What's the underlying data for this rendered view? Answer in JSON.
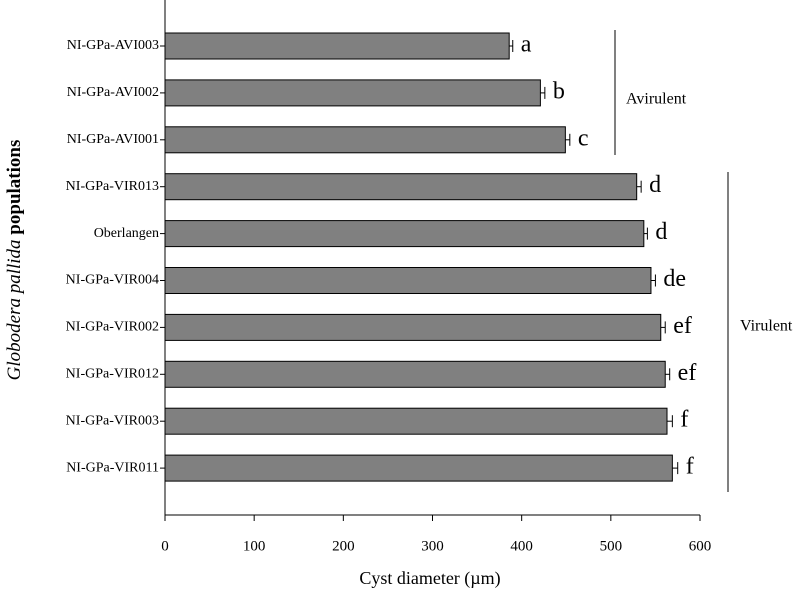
{
  "chart_data": {
    "type": "bar",
    "orientation": "horizontal",
    "categories": [
      "NI-GPa-AVI003",
      "NI-GPa-AVI002",
      "NI-GPa-AVI001",
      "NI-GPa-VIR013",
      "Oberlangen",
      "NI-GPa-VIR004",
      "NI-GPa-VIR002",
      "NI-GPa-VIR012",
      "NI-GPa-VIR003",
      "NI-GPa-VIR011"
    ],
    "values": [
      386,
      421,
      449,
      529,
      537,
      545,
      556,
      561,
      563,
      569
    ],
    "errors": [
      4,
      5,
      5,
      5,
      4,
      5,
      5,
      5,
      6,
      6
    ],
    "letters": [
      "a",
      "b",
      "c",
      "d",
      "d",
      "de",
      "ef",
      "ef",
      "f",
      "f"
    ],
    "color": "#808080",
    "x_label": "Cyst diameter (µm)",
    "y_label": {
      "italic": "Globodera pallida",
      "plain": "populations"
    },
    "groups": [
      {
        "label": "Avirulent"
      },
      {
        "label": "Virulent"
      }
    ],
    "xlim": [
      0,
      600
    ],
    "xticks": [
      0,
      100,
      200,
      300,
      400,
      500,
      600
    ]
  }
}
